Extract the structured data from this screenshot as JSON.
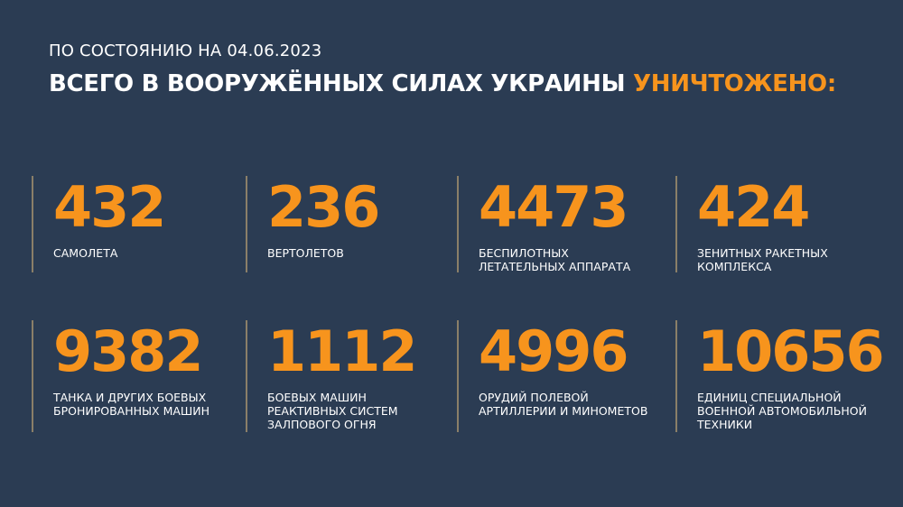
{
  "header": {
    "date_line": "ПО СОСТОЯНИЮ НА 04.06.2023",
    "title_main": "ВСЕГО В ВООРУЖЁННЫХ СИЛАХ УКРАИНЫ",
    "title_highlight": "УНИЧТОЖЕНО:"
  },
  "colors": {
    "background": "#2b3c53",
    "accent": "#f7941d",
    "divider": "#8a7f68"
  },
  "stats": [
    {
      "value": "432",
      "label": [
        "САМОЛЕТА"
      ]
    },
    {
      "value": "236",
      "label": [
        "ВЕРТОЛЕТОВ"
      ]
    },
    {
      "value": "4473",
      "label": [
        "БЕСПИЛОТНЫХ",
        "ЛЕТАТЕЛЬНЫХ АППАРАТА"
      ]
    },
    {
      "value": "424",
      "label": [
        "ЗЕНИТНЫХ РАКЕТНЫХ",
        "КОМПЛЕКСА"
      ]
    },
    {
      "value": "9382",
      "label": [
        "ТАНКА И ДРУГИХ БОЕВЫХ",
        "БРОНИРОВАННЫХ МАШИН"
      ]
    },
    {
      "value": "1112",
      "label": [
        "БОЕВЫХ МАШИН",
        "РЕАКТИВНЫХ СИСТЕМ",
        "ЗАЛПОВОГО ОГНЯ"
      ]
    },
    {
      "value": "4996",
      "label": [
        "ОРУДИЙ ПОЛЕВОЙ",
        "АРТИЛЛЕРИИ И МИНОМЕТОВ"
      ]
    },
    {
      "value": "10656",
      "label": [
        "ЕДИНИЦ СПЕЦИАЛЬНОЙ",
        "ВОЕННОЙ АВТОМОБИЛЬНОЙ",
        "ТЕХНИКИ"
      ]
    }
  ]
}
